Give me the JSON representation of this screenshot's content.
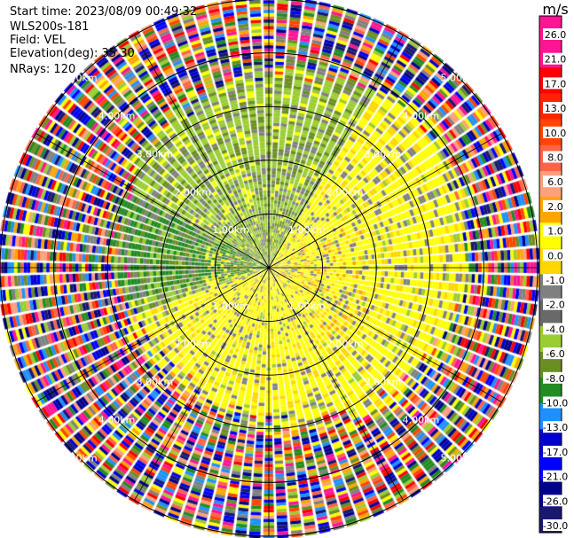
{
  "header": {
    "start_time": "Start time: 2023/08/09 00:49:32",
    "instrument": "WLS200s-181",
    "field": "Field: VEL",
    "elevation": "Elevation(deg): 35.30",
    "nrays": "NRays: 120"
  },
  "chart_data": {
    "type": "heatmap",
    "subtype": "polar-ppi",
    "nrays": 120,
    "range_rings": [
      {
        "value": 1,
        "label": "1.00km"
      },
      {
        "value": 2,
        "label": "2.00km"
      },
      {
        "value": 3,
        "label": "3.00km"
      },
      {
        "value": 4,
        "label": "4.00km"
      },
      {
        "value": 5,
        "label": "5.00km"
      }
    ],
    "max_range": 5.0,
    "colorbar": {
      "unit": "m/s",
      "ticks": [
        "26.0",
        "21.0",
        "17.0",
        "13.0",
        "10.0",
        "8.0",
        "6.0",
        "2.0",
        "1.0",
        "0.0",
        "-1.0",
        "-2.0",
        "-4.0",
        "-6.0",
        "-8.0",
        "-10.0",
        "-13.0",
        "-17.0",
        "-21.0",
        "-26.0",
        "-30.0"
      ],
      "colors": [
        "#ff1493",
        "#ff1493",
        "#ff0000",
        "#ff2400",
        "#ff4500",
        "#ff6347",
        "#ffa07a",
        "#ffa500",
        "#ffff00",
        "#ffd700",
        "#808080",
        "#696969",
        "#9acd32",
        "#6b8e23",
        "#228b22",
        "#1e90ff",
        "#0000cd",
        "#0000ff",
        "#00008b",
        "#191970"
      ]
    }
  },
  "colors": {
    "ring": "#000000",
    "text": "#ffffff",
    "background": "#ffffff"
  }
}
